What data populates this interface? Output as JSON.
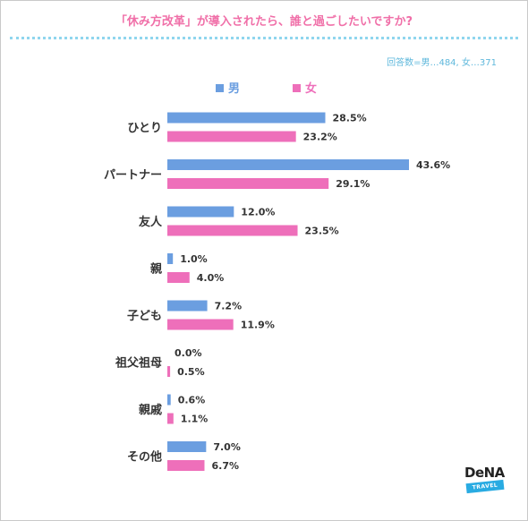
{
  "title": "「休み方改革」が導入されたら、誰と過ごしたいですか?",
  "sample_note": "回答数=男…484, 女…371",
  "logo": {
    "word": "DeNA",
    "band": "TRAVEL"
  },
  "colors": {
    "male": "#6b9ee0",
    "female": "#ee6fba",
    "title": "#f06fa8",
    "note": "#5fb8dc"
  },
  "chart_data": {
    "type": "bar",
    "orientation": "horizontal",
    "categories": [
      "ひとり",
      "パートナー",
      "友人",
      "親",
      "子ども",
      "祖父祖母",
      "親戚",
      "その他"
    ],
    "series": [
      {
        "name": "男",
        "values": [
          28.5,
          43.6,
          12.0,
          1.0,
          7.2,
          0.0,
          0.6,
          7.0
        ]
      },
      {
        "name": "女",
        "values": [
          23.2,
          29.1,
          23.5,
          4.0,
          11.9,
          0.5,
          1.1,
          6.7
        ]
      }
    ],
    "labels": [
      [
        "28.5%",
        "43.6%",
        "12.0%",
        "1.0%",
        "7.2%",
        "0.0%",
        "0.6%",
        "7.0%"
      ],
      [
        "23.2%",
        "29.1%",
        "23.5%",
        "4.0%",
        "11.9%",
        "0.5%",
        "1.1%",
        "6.7%"
      ]
    ],
    "xlim": [
      0,
      50
    ],
    "legend": "top-left",
    "grid": false
  }
}
